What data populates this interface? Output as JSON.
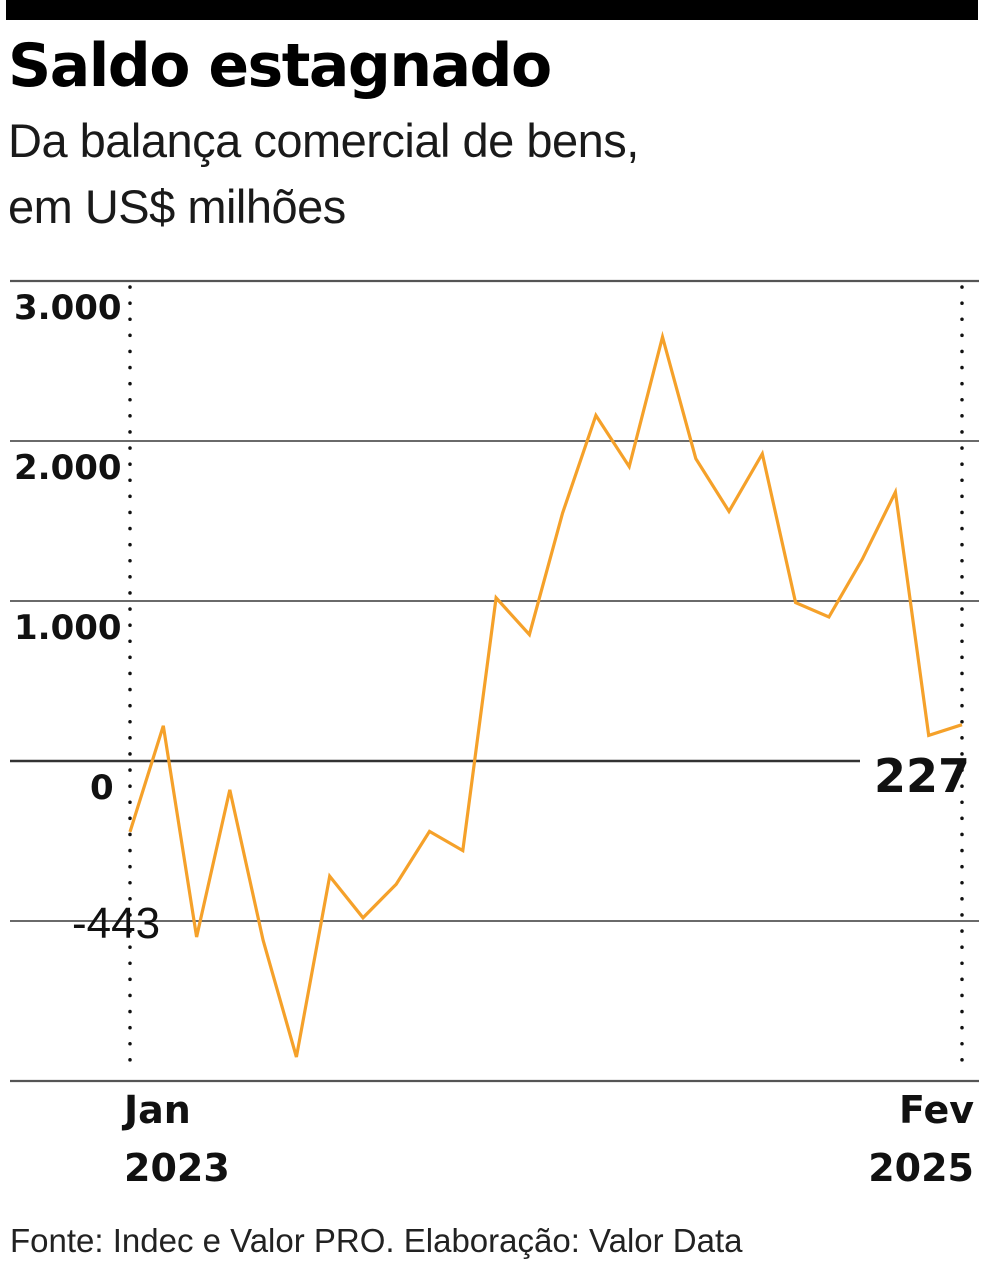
{
  "title": "Saldo estagnado",
  "subtitle_line1": "Da balança comercial de bens,",
  "subtitle_line2": "em US$ milhões",
  "source": "Fonte: Indec e Valor PRO. Elaboração: Valor Data",
  "colors": {
    "line": "#f5a12a",
    "grid": "#555555",
    "zero_line": "#333333",
    "top_bar": "#000000"
  },
  "chart_data": {
    "type": "line",
    "title": "Saldo estagnado",
    "subtitle": "Da balança comercial de bens, em US$ milhões",
    "xlabel": "",
    "ylabel": "",
    "ylim": [
      -2000,
      3000
    ],
    "yticks": [
      3000,
      2000,
      1000,
      0
    ],
    "ytick_labels": [
      "3.000",
      "2.000",
      "1.000",
      "0"
    ],
    "grid": true,
    "x_start_label": [
      "Jan",
      "2023"
    ],
    "x_end_label": [
      "Fev",
      "2025"
    ],
    "x": [
      "2023-01",
      "2023-02",
      "2023-03",
      "2023-04",
      "2023-05",
      "2023-06",
      "2023-07",
      "2023-08",
      "2023-09",
      "2023-10",
      "2023-11",
      "2023-12",
      "2024-01",
      "2024-02",
      "2024-03",
      "2024-04",
      "2024-05",
      "2024-06",
      "2024-07",
      "2024-08",
      "2024-09",
      "2024-10",
      "2024-11",
      "2024-12",
      "2025-01",
      "2025-02"
    ],
    "values": [
      -443,
      220,
      -1100,
      -180,
      -1120,
      -1850,
      -720,
      -980,
      -770,
      -440,
      -560,
      1020,
      790,
      1550,
      2160,
      1840,
      2650,
      1890,
      1560,
      1920,
      990,
      900,
      1260,
      1680,
      160,
      227
    ],
    "annotations": [
      {
        "x": "2023-01",
        "value": -443,
        "label": "-443"
      },
      {
        "x": "2025-02",
        "value": 227,
        "label": "227"
      }
    ]
  }
}
